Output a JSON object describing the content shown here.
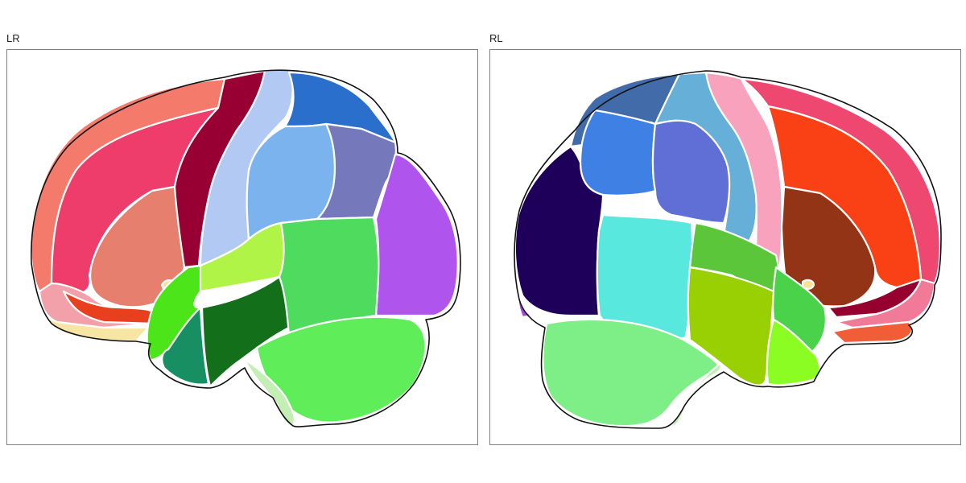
{
  "panels": [
    {
      "id": "left",
      "title": "LR",
      "regions": [
        {
          "name": "superior-frontal",
          "color": "#F47A6B"
        },
        {
          "name": "rostral-middle-frontal",
          "color": "#EE3D6A"
        },
        {
          "name": "pars-triangularis",
          "color": "#E67F6E"
        },
        {
          "name": "pars-orbitalis",
          "color": "#F2A0AA"
        },
        {
          "name": "lateral-orbitofrontal",
          "color": "#E8401E"
        },
        {
          "name": "frontal-pole",
          "color": "#F7E6A3"
        },
        {
          "name": "precentral",
          "color": "#980033"
        },
        {
          "name": "postcentral",
          "color": "#B2C9F3"
        },
        {
          "name": "paracentral",
          "color": "#2A6FCC"
        },
        {
          "name": "supramarginal",
          "color": "#7BB3EF"
        },
        {
          "name": "superior-parietal",
          "color": "#7579BC"
        },
        {
          "name": "inferior-parietal",
          "color": "#B054EE"
        },
        {
          "name": "transverse-temporal",
          "color": "#B0F448"
        },
        {
          "name": "insula",
          "color": "#FAE19A"
        },
        {
          "name": "superior-temporal",
          "color": "#4CE51A"
        },
        {
          "name": "middle-temporal",
          "color": "#146F1A"
        },
        {
          "name": "bankssts",
          "color": "#4FDB5E"
        },
        {
          "name": "temporal-pole",
          "color": "#178F62"
        },
        {
          "name": "inferior-temporal",
          "color": "#5FEE5A"
        },
        {
          "name": "lateral-occipital",
          "color": "#C3EFB4"
        }
      ]
    },
    {
      "id": "right",
      "title": "RL",
      "regions": [
        {
          "name": "paracentral",
          "color": "#416CA9"
        },
        {
          "name": "postcentral",
          "color": "#66AFD9"
        },
        {
          "name": "precentral",
          "color": "#F9A2BD"
        },
        {
          "name": "superior-frontal",
          "color": "#EE4871"
        },
        {
          "name": "rostral-middle-frontal",
          "color": "#FA4015"
        },
        {
          "name": "pars-triangularis",
          "color": "#923415"
        },
        {
          "name": "pars-opercularis",
          "color": "#96002E"
        },
        {
          "name": "pars-orbitalis",
          "color": "#F07A97"
        },
        {
          "name": "lateral-orbitofrontal",
          "color": "#F15D36"
        },
        {
          "name": "superior-parietal",
          "color": "#3E80E3"
        },
        {
          "name": "supramarginal",
          "color": "#606FD6"
        },
        {
          "name": "inferior-parietal",
          "color": "#1E005A"
        },
        {
          "name": "lateral-occipital-tip",
          "color": "#A447E6"
        },
        {
          "name": "bankssts",
          "color": "#58E8DD"
        },
        {
          "name": "transverse-temporal",
          "color": "#5BC63A"
        },
        {
          "name": "superior-temporal",
          "color": "#49D24A"
        },
        {
          "name": "middle-temporal",
          "color": "#98D004"
        },
        {
          "name": "temporal-pole",
          "color": "#8CFD22"
        },
        {
          "name": "insula",
          "color": "#FAE19A"
        },
        {
          "name": "inferior-temporal",
          "color": "#7EEE86"
        },
        {
          "name": "lateral-occipital",
          "color": "#C3EFB4"
        }
      ]
    }
  ]
}
